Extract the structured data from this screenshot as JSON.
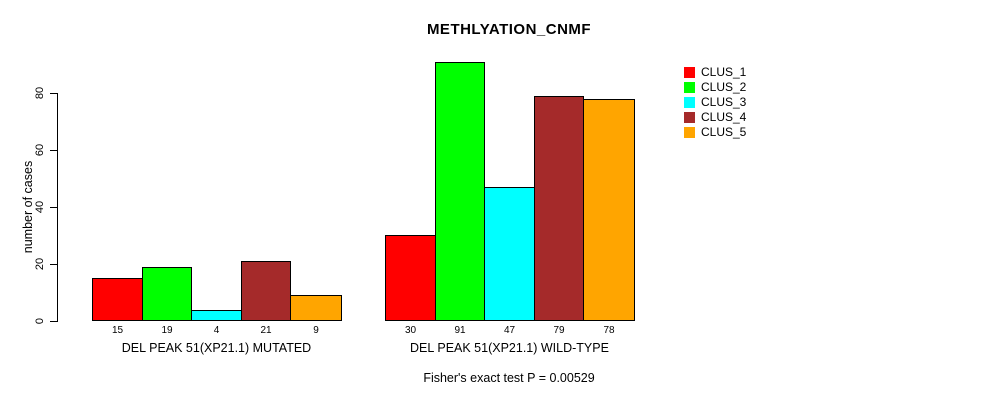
{
  "chart_data": {
    "type": "bar",
    "title": "METHLYATION_CNMF",
    "ylabel": "number of cases",
    "xlabel": "",
    "ylim": [
      0,
      91
    ],
    "y_ticks": [
      0,
      20,
      40,
      60,
      80
    ],
    "grid": false,
    "legend_position": "right",
    "bar_outline_color": "#000000",
    "background_color": "#ffffff",
    "categories": [
      "DEL PEAK 51(XP21.1) MUTATED",
      "DEL PEAK 51(XP21.1) WILD-TYPE"
    ],
    "series": [
      {
        "name": "CLUS_1",
        "color": "#FF0000",
        "values": [
          15,
          30
        ]
      },
      {
        "name": "CLUS_2",
        "color": "#00FF00",
        "values": [
          19,
          91
        ]
      },
      {
        "name": "CLUS_3",
        "color": "#00FFFF",
        "values": [
          4,
          47
        ]
      },
      {
        "name": "CLUS_4",
        "color": "#A52A2A",
        "values": [
          21,
          79
        ]
      },
      {
        "name": "CLUS_5",
        "color": "#FFA500",
        "values": [
          9,
          78
        ]
      }
    ],
    "value_labels_shown_below_bars": [
      [
        15,
        19,
        4,
        21,
        9
      ],
      [
        30,
        91,
        47,
        79,
        78
      ]
    ],
    "annotation": "Fisher's exact test P = 0.00529"
  }
}
